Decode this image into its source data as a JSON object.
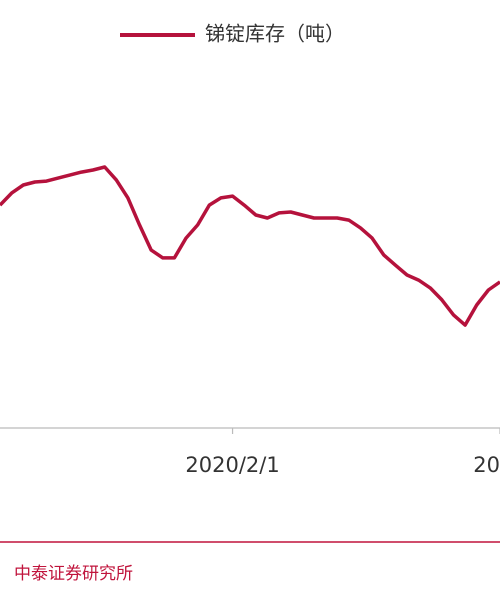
{
  "chart_data": {
    "type": "line",
    "legend_position": "top",
    "categories": [
      null,
      null,
      null,
      null,
      null,
      null,
      null,
      null,
      null,
      null,
      null,
      null,
      null,
      null,
      null,
      null,
      null,
      null,
      null,
      null,
      "2020/2/1",
      null,
      null,
      null,
      null,
      null,
      null,
      null,
      null,
      null,
      null,
      null,
      null,
      null,
      null,
      null,
      null,
      null,
      null,
      null,
      null,
      null,
      null,
      "20"
    ],
    "series": [
      {
        "name": "锑锭库存（吨）",
        "color": "#b5123c",
        "values": [
          74.3,
          78.3,
          81,
          82,
          82.3,
          83.3,
          84.3,
          85.3,
          86,
          87,
          82.7,
          76.7,
          67.7,
          59.3,
          56.7,
          56.7,
          63.3,
          67.7,
          74.3,
          76.7,
          77.3,
          74.3,
          71,
          70,
          71.7,
          72,
          71,
          70,
          70,
          70,
          69.3,
          66.7,
          63.3,
          57.7,
          54.3,
          51,
          49.3,
          46.7,
          42.7,
          37.7,
          34.3,
          41,
          46,
          48.7
        ]
      }
    ],
    "ylim": [
      0,
      140
    ],
    "source": "中泰证券研究所"
  }
}
